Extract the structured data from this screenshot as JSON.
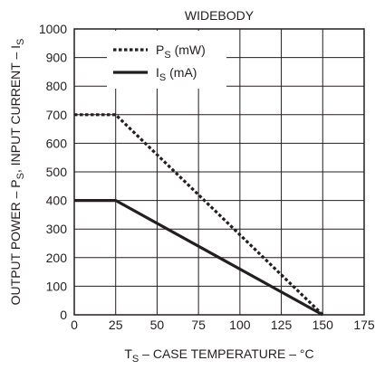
{
  "chart_data": {
    "type": "line",
    "title": "WIDEBODY",
    "xlabel": {
      "main": "T",
      "sub": "S",
      "rest": " – CASE TEMPERATURE – °C"
    },
    "ylabel": {
      "pre": "OUTPUT POWER – P",
      "sub": "S",
      "rest": ", INPUT CURRENT – I",
      "sub2": "S"
    },
    "xlim": [
      0,
      175
    ],
    "ylim": [
      0,
      1000
    ],
    "x_ticks": [
      0,
      25,
      50,
      75,
      100,
      125,
      150,
      175
    ],
    "y_ticks": [
      0,
      100,
      200,
      300,
      400,
      500,
      600,
      700,
      800,
      900,
      1000
    ],
    "grid": true,
    "legend_position": "top-left",
    "series": [
      {
        "name": "P_S (mW)",
        "legend": {
          "main": "P",
          "sub": "S",
          "unit": " (mW)"
        },
        "style": "dotted",
        "color": "#231f20",
        "x": [
          0,
          25,
          150
        ],
        "y": [
          700,
          700,
          0
        ]
      },
      {
        "name": "I_S (mA)",
        "legend": {
          "main": "I",
          "sub": "S",
          "unit": " (mA)"
        },
        "style": "solid",
        "color": "#231f20",
        "x": [
          0,
          25,
          150
        ],
        "y": [
          400,
          400,
          0
        ]
      }
    ]
  }
}
